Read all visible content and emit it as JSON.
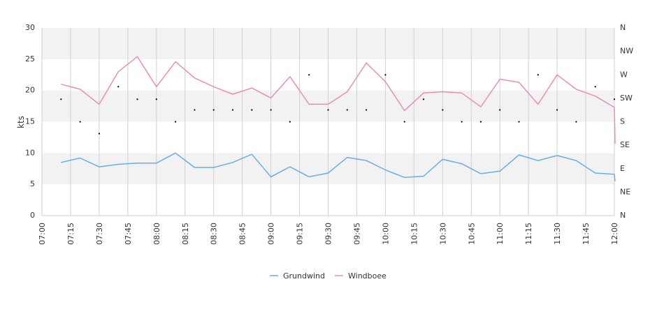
{
  "chart_data": {
    "type": "line",
    "ylabel": "kts",
    "ylim": [
      0,
      30
    ],
    "yticks": [
      "0",
      "5",
      "10",
      "15",
      "20",
      "25",
      "30"
    ],
    "xlim": [
      "07:00",
      "12:00"
    ],
    "xticks": [
      "07:00",
      "07:15",
      "07:30",
      "07:45",
      "08:00",
      "08:15",
      "08:30",
      "08:45",
      "09:00",
      "09:15",
      "09:30",
      "09:45",
      "10:00",
      "10:15",
      "10:30",
      "10:45",
      "11:00",
      "11:15",
      "11:30",
      "11:45",
      "12:00"
    ],
    "direction_axis": {
      "labels": [
        "N",
        "NE",
        "E",
        "SE",
        "S",
        "SW",
        "W",
        "NW",
        "N"
      ]
    },
    "x": [
      "07:10",
      "07:20",
      "07:30",
      "07:40",
      "07:50",
      "08:00",
      "08:10",
      "08:20",
      "08:30",
      "08:40",
      "08:50",
      "09:00",
      "09:10",
      "09:20",
      "09:30",
      "09:40",
      "09:50",
      "10:00",
      "10:10",
      "10:20",
      "10:30",
      "10:40",
      "10:50",
      "11:00",
      "11:10",
      "11:20",
      "11:30",
      "11:40",
      "11:50",
      "12:00"
    ],
    "series": [
      {
        "name": "Grundwind",
        "color": "#6aaee6",
        "values": [
          8.5,
          9.2,
          7.8,
          8.2,
          8.4,
          8.4,
          10.0,
          7.7,
          7.7,
          8.5,
          9.8,
          6.2,
          7.8,
          6.2,
          6.8,
          9.3,
          8.8,
          7.3,
          6.1,
          6.3,
          9.0,
          8.3,
          6.7,
          7.1,
          9.7,
          8.8,
          9.6,
          8.8,
          6.8,
          6.6
        ]
      },
      {
        "name": "Windboee",
        "color": "#e88dbb",
        "values": [
          21.0,
          20.2,
          17.8,
          23.0,
          25.4,
          20.6,
          24.6,
          22.0,
          20.6,
          19.4,
          20.4,
          18.8,
          22.2,
          17.8,
          17.8,
          19.8,
          24.4,
          21.4,
          16.8,
          19.6,
          19.8,
          19.6,
          17.4,
          21.8,
          21.3,
          17.8,
          22.5,
          20.2,
          19.1,
          17.3
        ]
      }
    ],
    "direction_values": [
      18.6,
      15.0,
      13.1,
      20.6,
      18.6,
      18.6,
      15.0,
      16.9,
      16.9,
      16.9,
      16.9,
      16.9,
      15.0,
      22.5,
      16.9,
      16.9,
      16.9,
      22.5,
      15.0,
      18.6,
      16.9,
      15.0,
      15.0,
      16.9,
      15.0,
      22.5,
      16.9,
      15.0,
      20.6,
      18.6
    ],
    "direction_color": "#000000",
    "legend_position": "bottom-center"
  }
}
